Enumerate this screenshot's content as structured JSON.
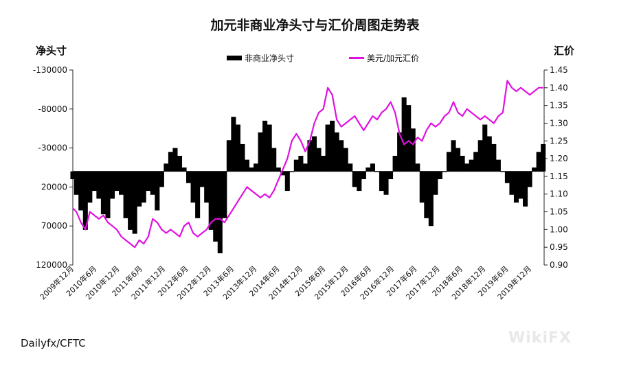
{
  "chart_data": {
    "type": "bar+line",
    "title": "加元非商业净头寸与汇价周图走势表",
    "left_axis": {
      "label": "净头寸",
      "ticks": [
        -130000,
        -80000,
        -30000,
        20000,
        70000,
        120000
      ],
      "tick_labels": [
        "-130000",
        "-80000",
        "-30000",
        "20000",
        "70000",
        "120000"
      ],
      "range": [
        -130000,
        120000
      ],
      "inverted": true
    },
    "right_axis": {
      "label": "汇价",
      "ticks": [
        0.9,
        0.95,
        1.0,
        1.05,
        1.1,
        1.15,
        1.2,
        1.25,
        1.3,
        1.35,
        1.4,
        1.45
      ],
      "tick_labels": [
        "0.90",
        "0.95",
        "1.00",
        "1.05",
        "1.10",
        "1.15",
        "1.20",
        "1.25",
        "1.30",
        "1.35",
        "1.40",
        "1.45"
      ],
      "range": [
        0.9,
        1.45
      ]
    },
    "x_labels": [
      "2009年12月",
      "2010年6月",
      "2010年12月",
      "2011年6月",
      "2011年12月",
      "2012年6月",
      "2012年12月",
      "2013年6月",
      "2013年12月",
      "2014年6月",
      "2014年12月",
      "2015年6月",
      "2015年12月",
      "2016年6月",
      "2016年12月",
      "2017年6月",
      "2017年12月",
      "2018年6月",
      "2018年12月",
      "2019年6月",
      "2019年12月"
    ],
    "series": [
      {
        "name": "非商业净头寸",
        "kind": "bar",
        "color": "#000000",
        "x": [
          2009.92,
          2010.0,
          2010.1,
          2010.2,
          2010.3,
          2010.4,
          2010.5,
          2010.6,
          2010.7,
          2010.8,
          2010.9,
          2011.0,
          2011.1,
          2011.2,
          2011.3,
          2011.4,
          2011.5,
          2011.6,
          2011.7,
          2011.8,
          2011.9,
          2012.0,
          2012.1,
          2012.2,
          2012.3,
          2012.4,
          2012.5,
          2012.6,
          2012.7,
          2012.8,
          2012.9,
          2013.0,
          2013.1,
          2013.2,
          2013.3,
          2013.4,
          2013.5,
          2013.6,
          2013.7,
          2013.8,
          2013.9,
          2014.0,
          2014.1,
          2014.2,
          2014.3,
          2014.4,
          2014.5,
          2014.6,
          2014.7,
          2014.8,
          2014.9,
          2015.0,
          2015.1,
          2015.2,
          2015.3,
          2015.4,
          2015.5,
          2015.6,
          2015.7,
          2015.8,
          2015.9,
          2016.0,
          2016.1,
          2016.2,
          2016.3,
          2016.4,
          2016.5,
          2016.6,
          2016.7,
          2016.8,
          2016.9,
          2017.0,
          2017.1,
          2017.2,
          2017.3,
          2017.4,
          2017.5,
          2017.6,
          2017.7,
          2017.8,
          2017.9,
          2018.0,
          2018.1,
          2018.2,
          2018.3,
          2018.4,
          2018.5,
          2018.6,
          2018.7,
          2018.8,
          2018.9,
          2019.0,
          2019.1,
          2019.2,
          2019.3,
          2019.4,
          2019.5,
          2019.6,
          2019.7,
          2019.8,
          2019.9,
          2020.0,
          2020.1,
          2020.2,
          2020.3,
          2020.4
        ],
        "values": [
          10000,
          30000,
          50000,
          75000,
          40000,
          25000,
          35000,
          55000,
          60000,
          35000,
          25000,
          30000,
          60000,
          75000,
          80000,
          45000,
          40000,
          25000,
          30000,
          50000,
          20000,
          -10000,
          -25000,
          -30000,
          -20000,
          -5000,
          15000,
          40000,
          60000,
          20000,
          40000,
          75000,
          90000,
          105000,
          60000,
          -40000,
          -70000,
          -60000,
          -35000,
          -15000,
          -5000,
          -10000,
          -50000,
          -65000,
          -60000,
          -30000,
          -5000,
          5000,
          25000,
          0,
          -15000,
          -20000,
          -10000,
          -40000,
          -45000,
          -30000,
          -20000,
          -60000,
          -65000,
          -50000,
          -40000,
          -30000,
          -10000,
          20000,
          25000,
          10000,
          -5000,
          -10000,
          0,
          25000,
          30000,
          10000,
          -20000,
          -50000,
          -95000,
          -85000,
          -55000,
          -10000,
          40000,
          60000,
          70000,
          30000,
          10000,
          0,
          -25000,
          -40000,
          -30000,
          -20000,
          -10000,
          -15000,
          -25000,
          -40000,
          -60000,
          -45000,
          -35000,
          -15000,
          0,
          15000,
          30000,
          40000,
          35000,
          45000,
          20000,
          -5000,
          -25000,
          -35000
        ]
      },
      {
        "name": "美元/加元汇价",
        "kind": "line",
        "color": "#e010e0",
        "x": [
          2009.92,
          2010.0,
          2010.1,
          2010.2,
          2010.3,
          2010.4,
          2010.5,
          2010.6,
          2010.7,
          2010.8,
          2010.9,
          2011.0,
          2011.1,
          2011.2,
          2011.3,
          2011.4,
          2011.5,
          2011.6,
          2011.7,
          2011.8,
          2011.9,
          2012.0,
          2012.1,
          2012.2,
          2012.3,
          2012.4,
          2012.5,
          2012.6,
          2012.7,
          2012.8,
          2012.9,
          2013.0,
          2013.1,
          2013.2,
          2013.3,
          2013.4,
          2013.5,
          2013.6,
          2013.7,
          2013.8,
          2013.9,
          2014.0,
          2014.1,
          2014.2,
          2014.3,
          2014.4,
          2014.5,
          2014.6,
          2014.7,
          2014.8,
          2014.9,
          2015.0,
          2015.1,
          2015.2,
          2015.3,
          2015.4,
          2015.5,
          2015.6,
          2015.7,
          2015.8,
          2015.9,
          2016.0,
          2016.1,
          2016.2,
          2016.3,
          2016.4,
          2016.5,
          2016.6,
          2016.7,
          2016.8,
          2016.9,
          2017.0,
          2017.1,
          2017.2,
          2017.3,
          2017.4,
          2017.5,
          2017.6,
          2017.7,
          2017.8,
          2017.9,
          2018.0,
          2018.1,
          2018.2,
          2018.3,
          2018.4,
          2018.5,
          2018.6,
          2018.7,
          2018.8,
          2018.9,
          2019.0,
          2019.1,
          2019.2,
          2019.3,
          2019.4,
          2019.5,
          2019.6,
          2019.7,
          2019.8,
          2019.9,
          2020.0,
          2020.1,
          2020.2,
          2020.3,
          2020.4
        ],
        "values": [
          1.06,
          1.05,
          1.02,
          1.0,
          1.05,
          1.04,
          1.03,
          1.04,
          1.02,
          1.01,
          1.0,
          0.98,
          0.97,
          0.96,
          0.95,
          0.97,
          0.96,
          0.98,
          1.03,
          1.02,
          1.0,
          0.99,
          1.0,
          0.99,
          0.98,
          1.01,
          1.02,
          0.99,
          0.98,
          0.99,
          1.0,
          1.02,
          1.03,
          1.03,
          1.02,
          1.04,
          1.06,
          1.08,
          1.1,
          1.12,
          1.11,
          1.1,
          1.09,
          1.1,
          1.09,
          1.11,
          1.14,
          1.17,
          1.2,
          1.25,
          1.27,
          1.25,
          1.22,
          1.25,
          1.3,
          1.33,
          1.34,
          1.4,
          1.38,
          1.31,
          1.29,
          1.3,
          1.31,
          1.32,
          1.3,
          1.28,
          1.3,
          1.32,
          1.31,
          1.33,
          1.34,
          1.36,
          1.33,
          1.27,
          1.24,
          1.25,
          1.24,
          1.26,
          1.25,
          1.28,
          1.3,
          1.29,
          1.3,
          1.32,
          1.33,
          1.36,
          1.33,
          1.32,
          1.34,
          1.33,
          1.32,
          1.31,
          1.32,
          1.31,
          1.3,
          1.32,
          1.33,
          1.42,
          1.4,
          1.39,
          1.4,
          1.39,
          1.38,
          1.39,
          1.4,
          1.4
        ]
      }
    ],
    "legend_position": "top-center"
  },
  "text": {
    "source": "Dailyfx/CFTC",
    "watermark": "WikiFX"
  }
}
